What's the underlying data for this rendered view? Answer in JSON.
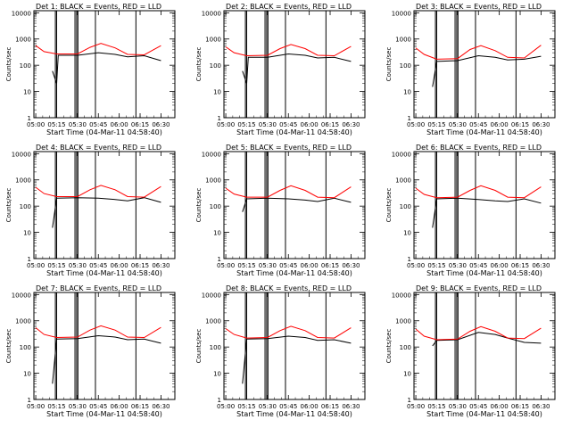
{
  "figure": {
    "xlabel": "Start Time (04-Mar-11 04:58:40)",
    "ylabel": "Counts/sec"
  },
  "chart_data": [
    {
      "type": "line",
      "title": "Det 1: BLACK = Events, RED = LLD",
      "xlabel": "Start Time (04-Mar-11 04:58:40)",
      "ylabel": "Counts/sec",
      "x_ticks": [
        "05:00",
        "05:15",
        "05:30",
        "05:45",
        "06:00",
        "06:15",
        "06:30"
      ],
      "y_ticks": [
        "1",
        "10",
        "100",
        "1000",
        "10000"
      ],
      "yscale": "log",
      "ylim": [
        1,
        12000
      ],
      "xlim": [
        "04:58:40",
        "06:40"
      ],
      "series": [
        {
          "name": "Events",
          "color": "#000000",
          "values": [
            [
              5.2,
              60
            ],
            [
              5.25,
              20
            ],
            [
              5.27,
              240
            ],
            [
              5.5,
              240
            ],
            [
              5.75,
              300
            ],
            [
              5.95,
              260
            ],
            [
              6.1,
              210
            ],
            [
              6.3,
              230
            ],
            [
              6.5,
              150
            ]
          ]
        },
        {
          "name": "LLD",
          "color": "#ff0000",
          "values": [
            [
              5.0,
              560
            ],
            [
              5.1,
              330
            ],
            [
              5.25,
              270
            ],
            [
              5.5,
              270
            ],
            [
              5.65,
              480
            ],
            [
              5.78,
              680
            ],
            [
              5.95,
              460
            ],
            [
              6.1,
              260
            ],
            [
              6.3,
              250
            ],
            [
              6.5,
              560
            ]
          ]
        }
      ]
    },
    {
      "type": "line",
      "title": "Det 2: BLACK = Events, RED = LLD",
      "xlabel": "Start Time (04-Mar-11 04:58:40)",
      "ylabel": "Counts/sec",
      "x_ticks": [
        "05:00",
        "05:15",
        "05:30",
        "05:45",
        "06:00",
        "06:15",
        "06:30"
      ],
      "y_ticks": [
        "1",
        "10",
        "100",
        "1000",
        "10000"
      ],
      "yscale": "log",
      "ylim": [
        1,
        12000
      ],
      "xlim": [
        "04:58:40",
        "06:40"
      ],
      "series": [
        {
          "name": "Events",
          "color": "#000000",
          "values": [
            [
              5.2,
              60
            ],
            [
              5.25,
              20
            ],
            [
              5.27,
              200
            ],
            [
              5.5,
              200
            ],
            [
              5.75,
              270
            ],
            [
              5.95,
              240
            ],
            [
              6.1,
              190
            ],
            [
              6.3,
              200
            ],
            [
              6.5,
              140
            ]
          ]
        },
        {
          "name": "LLD",
          "color": "#ff0000",
          "values": [
            [
              5.0,
              500
            ],
            [
              5.1,
              300
            ],
            [
              5.25,
              230
            ],
            [
              5.5,
              240
            ],
            [
              5.65,
              430
            ],
            [
              5.78,
              620
            ],
            [
              5.95,
              430
            ],
            [
              6.1,
              240
            ],
            [
              6.3,
              230
            ],
            [
              6.5,
              520
            ]
          ]
        }
      ]
    },
    {
      "type": "line",
      "title": "Det 3: BLACK = Events, RED = LLD",
      "xlabel": "Start Time (04-Mar-11 04:58:40)",
      "ylabel": "Counts/sec",
      "x_ticks": [
        "05:00",
        "05:15",
        "05:30",
        "05:45",
        "06:00",
        "06:15",
        "06:30"
      ],
      "y_ticks": [
        "1",
        "10",
        "100",
        "1000",
        "10000"
      ],
      "yscale": "log",
      "ylim": [
        1,
        12000
      ],
      "xlim": [
        "04:58:40",
        "06:40"
      ],
      "series": [
        {
          "name": "Events",
          "color": "#000000",
          "values": [
            [
              5.2,
              15
            ],
            [
              5.25,
              140
            ],
            [
              5.5,
              150
            ],
            [
              5.75,
              230
            ],
            [
              5.95,
              200
            ],
            [
              6.1,
              160
            ],
            [
              6.3,
              170
            ],
            [
              6.5,
              220
            ]
          ]
        },
        {
          "name": "LLD",
          "color": "#ff0000",
          "values": [
            [
              5.0,
              450
            ],
            [
              5.1,
              260
            ],
            [
              5.25,
              170
            ],
            [
              5.5,
              180
            ],
            [
              5.65,
              400
            ],
            [
              5.78,
              560
            ],
            [
              5.95,
              360
            ],
            [
              6.1,
              200
            ],
            [
              6.3,
              190
            ],
            [
              6.5,
              580
            ]
          ]
        }
      ]
    },
    {
      "type": "line",
      "title": "Det 4: BLACK = Events, RED = LLD",
      "xlabel": "Start Time (04-Mar-11 04:58:40)",
      "ylabel": "Counts/sec",
      "x_ticks": [
        "05:00",
        "05:15",
        "05:30",
        "05:45",
        "06:00",
        "06:15",
        "06:30"
      ],
      "y_ticks": [
        "1",
        "10",
        "100",
        "1000",
        "10000"
      ],
      "yscale": "log",
      "ylim": [
        1,
        12000
      ],
      "xlim": [
        "04:58:40",
        "06:40"
      ],
      "series": [
        {
          "name": "Events",
          "color": "#000000",
          "values": [
            [
              5.2,
              15
            ],
            [
              5.25,
              200
            ],
            [
              5.5,
              210
            ],
            [
              5.75,
              200
            ],
            [
              5.95,
              180
            ],
            [
              6.1,
              160
            ],
            [
              6.3,
              210
            ],
            [
              6.5,
              140
            ]
          ]
        },
        {
          "name": "LLD",
          "color": "#ff0000",
          "values": [
            [
              5.0,
              520
            ],
            [
              5.1,
              300
            ],
            [
              5.25,
              230
            ],
            [
              5.5,
              230
            ],
            [
              5.65,
              420
            ],
            [
              5.78,
              620
            ],
            [
              5.95,
              420
            ],
            [
              6.1,
              230
            ],
            [
              6.3,
              220
            ],
            [
              6.5,
              560
            ]
          ]
        }
      ]
    },
    {
      "type": "line",
      "title": "Det 5: BLACK = Events, RED = LLD",
      "xlabel": "Start Time (04-Mar-11 04:58:40)",
      "ylabel": "Counts/sec",
      "x_ticks": [
        "05:00",
        "05:15",
        "05:30",
        "05:45",
        "06:00",
        "06:15",
        "06:30"
      ],
      "y_ticks": [
        "1",
        "10",
        "100",
        "1000",
        "10000"
      ],
      "yscale": "log",
      "ylim": [
        1,
        12000
      ],
      "xlim": [
        "04:58:40",
        "06:40"
      ],
      "series": [
        {
          "name": "Events",
          "color": "#000000",
          "values": [
            [
              5.2,
              60
            ],
            [
              5.25,
              190
            ],
            [
              5.5,
              200
            ],
            [
              5.75,
              190
            ],
            [
              5.95,
              170
            ],
            [
              6.1,
              150
            ],
            [
              6.3,
              200
            ],
            [
              6.5,
              140
            ]
          ]
        },
        {
          "name": "LLD",
          "color": "#ff0000",
          "values": [
            [
              5.0,
              480
            ],
            [
              5.1,
              290
            ],
            [
              5.25,
              220
            ],
            [
              5.5,
              220
            ],
            [
              5.65,
              400
            ],
            [
              5.78,
              600
            ],
            [
              5.95,
              400
            ],
            [
              6.1,
              220
            ],
            [
              6.3,
              210
            ],
            [
              6.5,
              540
            ]
          ]
        }
      ]
    },
    {
      "type": "line",
      "title": "Det 6: BLACK = Events, RED = LLD",
      "xlabel": "Start Time (04-Mar-11 04:58:40)",
      "ylabel": "Counts/sec",
      "x_ticks": [
        "05:00",
        "05:15",
        "05:30",
        "05:45",
        "06:00",
        "06:15",
        "06:30"
      ],
      "y_ticks": [
        "1",
        "10",
        "100",
        "1000",
        "10000"
      ],
      "yscale": "log",
      "ylim": [
        1,
        12000
      ],
      "xlim": [
        "04:58:40",
        "06:40"
      ],
      "series": [
        {
          "name": "Events",
          "color": "#000000",
          "values": [
            [
              5.2,
              15
            ],
            [
              5.25,
              190
            ],
            [
              5.5,
              200
            ],
            [
              5.75,
              180
            ],
            [
              5.95,
              160
            ],
            [
              6.1,
              150
            ],
            [
              6.3,
              190
            ],
            [
              6.5,
              130
            ]
          ]
        },
        {
          "name": "LLD",
          "color": "#ff0000",
          "values": [
            [
              5.0,
              480
            ],
            [
              5.1,
              280
            ],
            [
              5.25,
              210
            ],
            [
              5.5,
              220
            ],
            [
              5.65,
              400
            ],
            [
              5.78,
              600
            ],
            [
              5.95,
              400
            ],
            [
              6.1,
              220
            ],
            [
              6.3,
              210
            ],
            [
              6.5,
              540
            ]
          ]
        }
      ]
    },
    {
      "type": "line",
      "title": "Det 7: BLACK = Events, RED = LLD",
      "xlabel": "Start Time (04-Mar-11 04:58:40)",
      "ylabel": "Counts/sec",
      "x_ticks": [
        "05:00",
        "05:15",
        "05:30",
        "05:45",
        "06:00",
        "06:15",
        "06:30"
      ],
      "y_ticks": [
        "1",
        "10",
        "100",
        "1000",
        "10000"
      ],
      "yscale": "log",
      "ylim": [
        1,
        12000
      ],
      "xlim": [
        "04:58:40",
        "06:40"
      ],
      "series": [
        {
          "name": "Events",
          "color": "#000000",
          "values": [
            [
              5.2,
              4
            ],
            [
              5.25,
              200
            ],
            [
              5.5,
              210
            ],
            [
              5.75,
              270
            ],
            [
              5.95,
              240
            ],
            [
              6.1,
              190
            ],
            [
              6.3,
              200
            ],
            [
              6.5,
              140
            ]
          ]
        },
        {
          "name": "LLD",
          "color": "#ff0000",
          "values": [
            [
              5.0,
              540
            ],
            [
              5.1,
              300
            ],
            [
              5.25,
              230
            ],
            [
              5.5,
              240
            ],
            [
              5.65,
              440
            ],
            [
              5.78,
              640
            ],
            [
              5.95,
              440
            ],
            [
              6.1,
              240
            ],
            [
              6.3,
              230
            ],
            [
              6.5,
              560
            ]
          ]
        }
      ]
    },
    {
      "type": "line",
      "title": "Det 8: BLACK = Events, RED = LLD",
      "xlabel": "Start Time (04-Mar-11 04:58:40)",
      "ylabel": "Counts/sec",
      "x_ticks": [
        "05:00",
        "05:15",
        "05:30",
        "05:45",
        "06:00",
        "06:15",
        "06:30"
      ],
      "y_ticks": [
        "1",
        "10",
        "100",
        "1000",
        "10000"
      ],
      "yscale": "log",
      "ylim": [
        1,
        12000
      ],
      "xlim": [
        "04:58:40",
        "06:40"
      ],
      "series": [
        {
          "name": "Events",
          "color": "#000000",
          "values": [
            [
              5.2,
              4
            ],
            [
              5.25,
              200
            ],
            [
              5.5,
              210
            ],
            [
              5.75,
              260
            ],
            [
              5.95,
              230
            ],
            [
              6.1,
              180
            ],
            [
              6.3,
              190
            ],
            [
              6.5,
              140
            ]
          ]
        },
        {
          "name": "LLD",
          "color": "#ff0000",
          "values": [
            [
              5.0,
              500
            ],
            [
              5.1,
              300
            ],
            [
              5.25,
              220
            ],
            [
              5.5,
              230
            ],
            [
              5.65,
              420
            ],
            [
              5.78,
              620
            ],
            [
              5.95,
              420
            ],
            [
              6.1,
              230
            ],
            [
              6.3,
              220
            ],
            [
              6.5,
              540
            ]
          ]
        }
      ]
    },
    {
      "type": "line",
      "title": "Det 9: BLACK = Events, RED = LLD",
      "xlabel": "Start Time (04-Mar-11 04:58:40)",
      "ylabel": "Counts/sec",
      "x_ticks": [
        "05:00",
        "05:15",
        "05:30",
        "05:45",
        "06:00",
        "06:15",
        "06:30"
      ],
      "y_ticks": [
        "1",
        "10",
        "100",
        "1000",
        "10000"
      ],
      "yscale": "log",
      "ylim": [
        1,
        12000
      ],
      "xlim": [
        "04:58:40",
        "06:40"
      ],
      "series": [
        {
          "name": "Events",
          "color": "#000000",
          "values": [
            [
              5.2,
              110
            ],
            [
              5.25,
              180
            ],
            [
              5.5,
              190
            ],
            [
              5.75,
              360
            ],
            [
              5.95,
              300
            ],
            [
              6.1,
              220
            ],
            [
              6.3,
              150
            ],
            [
              6.5,
              140
            ]
          ]
        },
        {
          "name": "LLD",
          "color": "#ff0000",
          "values": [
            [
              5.0,
              480
            ],
            [
              5.1,
              260
            ],
            [
              5.25,
              190
            ],
            [
              5.5,
              200
            ],
            [
              5.65,
              400
            ],
            [
              5.78,
              600
            ],
            [
              5.95,
              400
            ],
            [
              6.1,
              220
            ],
            [
              6.3,
              210
            ],
            [
              6.5,
              520
            ]
          ]
        }
      ]
    }
  ]
}
